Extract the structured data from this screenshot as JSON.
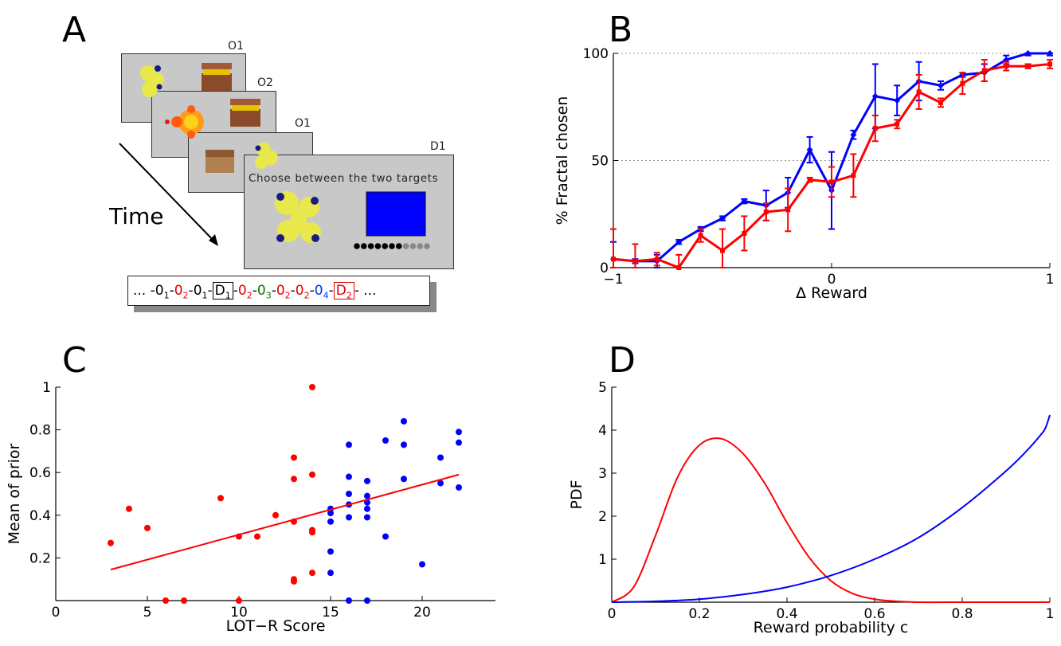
{
  "panels": {
    "a": {
      "letter": "A",
      "screen_labels": [
        "O1",
        "O2",
        "O1",
        "D1"
      ],
      "prompt_text": "Choose between the two targets",
      "time_label": "Time",
      "sequence": [
        {
          "text": "... -",
          "color": "#000000"
        },
        {
          "text": "0",
          "sub": "1",
          "color": "#000000"
        },
        {
          "text": "-",
          "color": "#000000"
        },
        {
          "text": "0",
          "sub": "2",
          "color": "#e00000"
        },
        {
          "text": "-",
          "color": "#000000"
        },
        {
          "text": "0",
          "sub": "1",
          "color": "#000000"
        },
        {
          "text": "-",
          "color": "#000000"
        },
        {
          "text": "D",
          "sub": "1",
          "color": "#000000",
          "box": "black"
        },
        {
          "text": "-",
          "color": "#000000"
        },
        {
          "text": "0",
          "sub": "2",
          "color": "#e00000"
        },
        {
          "text": "-",
          "color": "#000000"
        },
        {
          "text": "0",
          "sub": "3",
          "color": "#008000"
        },
        {
          "text": "-",
          "color": "#000000"
        },
        {
          "text": "0",
          "sub": "2",
          "color": "#e00000"
        },
        {
          "text": "-",
          "color": "#000000"
        },
        {
          "text": "0",
          "sub": "2",
          "color": "#e00000"
        },
        {
          "text": "-",
          "color": "#000000"
        },
        {
          "text": "0",
          "sub": "4",
          "color": "#0030ff"
        },
        {
          "text": "-",
          "color": "#000000"
        },
        {
          "text": "D",
          "sub": "2",
          "color": "#e00000",
          "box": "red"
        },
        {
          "text": "- ...",
          "color": "#000000"
        }
      ],
      "progress_dots": {
        "filled": 7,
        "total": 11
      }
    },
    "b": {
      "letter": "B"
    },
    "c": {
      "letter": "C"
    },
    "d": {
      "letter": "D"
    }
  },
  "colors": {
    "blue": "#0000ff",
    "red": "#ff0000",
    "screen_gray": "#c8c8c8",
    "target_blue": "#0000ff"
  },
  "chart_data": [
    {
      "id": "B",
      "type": "line",
      "xlabel": "Δ Reward",
      "ylabel": "% Fractal chosen",
      "xlim": [
        -1,
        1
      ],
      "ylim": [
        0,
        100
      ],
      "xticks": [
        -1,
        0,
        1
      ],
      "yticks": [
        0,
        50,
        100
      ],
      "grid": "horizontal dotted",
      "series": [
        {
          "color": "#0000ff",
          "marker": "diamond",
          "x": [
            -1.0,
            -0.9,
            -0.8,
            -0.7,
            -0.6,
            -0.5,
            -0.4,
            -0.3,
            -0.2,
            -0.1,
            0.0,
            0.1,
            0.2,
            0.3,
            0.4,
            0.5,
            0.6,
            0.7,
            0.8,
            0.9,
            1.0
          ],
          "y": [
            4,
            3,
            3,
            12,
            18,
            23,
            31,
            29,
            35,
            55,
            36,
            62,
            80,
            78,
            87,
            85,
            90,
            91,
            97,
            100,
            100
          ],
          "err": [
            8,
            1,
            3,
            1,
            1,
            1,
            1,
            7,
            7,
            6,
            18,
            2,
            15,
            7,
            9,
            2,
            1,
            4,
            2,
            1,
            1
          ]
        },
        {
          "color": "#ff0000",
          "marker": "square",
          "x": [
            -1.0,
            -0.9,
            -0.8,
            -0.7,
            -0.6,
            -0.5,
            -0.4,
            -0.3,
            -0.2,
            -0.1,
            0.0,
            0.1,
            0.2,
            0.3,
            0.4,
            0.5,
            0.6,
            0.7,
            0.8,
            0.9,
            1.0
          ],
          "y": [
            4,
            3,
            4,
            0,
            15,
            8,
            16,
            26,
            27,
            41,
            40,
            43,
            65,
            67,
            82,
            77,
            86,
            92,
            94,
            94,
            95
          ],
          "err": [
            14,
            8,
            3,
            6,
            3,
            10,
            8,
            4,
            10,
            1,
            7,
            10,
            6,
            2,
            8,
            2,
            5,
            5,
            2,
            1,
            2
          ]
        }
      ]
    },
    {
      "id": "C",
      "type": "scatter",
      "xlabel": "LOT−R Score",
      "ylabel": "Mean of prior",
      "xlim": [
        0,
        24
      ],
      "ylim": [
        0,
        1
      ],
      "xticks": [
        0,
        5,
        10,
        15,
        20
      ],
      "yticks": [
        0.2,
        0.4,
        0.6,
        0.8,
        1
      ],
      "series": [
        {
          "color": "#ff0000",
          "points": [
            [
              3,
              0.27
            ],
            [
              4,
              0.43
            ],
            [
              5,
              0.34
            ],
            [
              6,
              0
            ],
            [
              7,
              0
            ],
            [
              9,
              0.48
            ],
            [
              10,
              0.3
            ],
            [
              10,
              0
            ],
            [
              11,
              0.3
            ],
            [
              12,
              0.4
            ],
            [
              13,
              0.67
            ],
            [
              13,
              0.57
            ],
            [
              13,
              0.37
            ],
            [
              13,
              0.1
            ],
            [
              13,
              0.09
            ],
            [
              14,
              1.0
            ],
            [
              14,
              0.59
            ],
            [
              14,
              0.33
            ],
            [
              14,
              0.32
            ],
            [
              14,
              0.13
            ]
          ]
        },
        {
          "color": "#0000ff",
          "points": [
            [
              15,
              0.43
            ],
            [
              15,
              0.41
            ],
            [
              15,
              0.37
            ],
            [
              15,
              0.23
            ],
            [
              15,
              0.13
            ],
            [
              16,
              0.73
            ],
            [
              16,
              0.58
            ],
            [
              16,
              0.5
            ],
            [
              16,
              0.45
            ],
            [
              16,
              0.39
            ],
            [
              16,
              0
            ],
            [
              17,
              0.56
            ],
            [
              17,
              0.49
            ],
            [
              17,
              0.46
            ],
            [
              17,
              0.43
            ],
            [
              17,
              0.39
            ],
            [
              17,
              0
            ],
            [
              18,
              0.75
            ],
            [
              18,
              0.3
            ],
            [
              19,
              0.84
            ],
            [
              19,
              0.73
            ],
            [
              19,
              0.57
            ],
            [
              20,
              0.17
            ],
            [
              21,
              0.67
            ],
            [
              21,
              0.55
            ],
            [
              22,
              0.79
            ],
            [
              22,
              0.74
            ],
            [
              22,
              0.53
            ]
          ]
        }
      ],
      "fit_line": {
        "color": "#ff0000",
        "x": [
          3,
          22
        ],
        "y": [
          0.145,
          0.59
        ]
      }
    },
    {
      "id": "D",
      "type": "line",
      "xlabel": "Reward probability c",
      "ylabel": "PDF",
      "xlim": [
        0,
        1
      ],
      "ylim": [
        0,
        5
      ],
      "xticks": [
        0,
        0.2,
        0.4,
        0.6,
        0.8,
        1
      ],
      "yticks": [
        1,
        2,
        3,
        4,
        5
      ],
      "series": [
        {
          "color": "#ff0000",
          "x": [
            0,
            0.05,
            0.1,
            0.15,
            0.2,
            0.25,
            0.3,
            0.35,
            0.4,
            0.45,
            0.5,
            0.55,
            0.6,
            0.65,
            0.7,
            0.8,
            0.9,
            1.0
          ],
          "y": [
            0,
            0.35,
            1.55,
            2.9,
            3.65,
            3.8,
            3.45,
            2.75,
            1.85,
            1.05,
            0.5,
            0.2,
            0.07,
            0.02,
            0.0,
            0.0,
            0.0,
            0.0
          ]
        },
        {
          "color": "#0000ff",
          "x": [
            0,
            0.1,
            0.2,
            0.3,
            0.4,
            0.5,
            0.6,
            0.7,
            0.8,
            0.9,
            0.95,
            0.98,
            0.99,
            1.0
          ],
          "y": [
            0,
            0.02,
            0.07,
            0.18,
            0.35,
            0.62,
            1.0,
            1.5,
            2.2,
            3.05,
            3.55,
            3.9,
            4.05,
            4.35
          ]
        }
      ]
    }
  ]
}
